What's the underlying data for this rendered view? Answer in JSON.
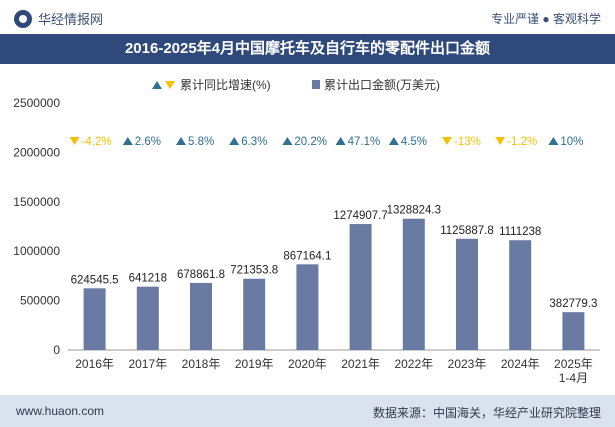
{
  "header": {
    "brand": "华经情报网",
    "tagline": "专业严谨 ● 客观科学"
  },
  "title": "2016-2025年4月中国摩托车及自行车的零配件出口金额",
  "legend": {
    "rate_label": "累计同比增速(%)",
    "value_label": "累计出口金额(万美元)"
  },
  "footer": {
    "url": "www.huaon.com",
    "source": "数据来源：中国海关，华经产业研究院整理"
  },
  "colors": {
    "bar": "#6a7ba3",
    "up": "#2f6f8f",
    "down": "#f2c200",
    "title_bg": "#2f4a7a",
    "footer_bg": "#d9e2ee"
  },
  "chart_data": {
    "type": "bar",
    "categories": [
      "2016年",
      "2017年",
      "2018年",
      "2019年",
      "2020年",
      "2021年",
      "2022年",
      "2023年",
      "2024年",
      "2025年\n1-4月"
    ],
    "series": [
      {
        "name": "累计出口金额(万美元)",
        "values": [
          624545.5,
          641218,
          678861.8,
          721353.8,
          867164.1,
          1274907.7,
          1328824.3,
          1125887.8,
          1111238,
          382779.3
        ]
      },
      {
        "name": "累计同比增速(%)",
        "values": [
          -4.2,
          2.6,
          5.8,
          6.3,
          20.2,
          47.1,
          4.5,
          -13,
          -1.2,
          10
        ]
      }
    ],
    "value_labels": [
      "624545.5",
      "641218",
      "678861.8",
      "721353.8",
      "867164.1",
      "1274907.7",
      "1328824.3",
      "1125887.8",
      "1111238",
      "382779.3"
    ],
    "rate_labels": [
      "-4.2%",
      "2.6%",
      "5.8%",
      "6.3%",
      "20.2%",
      "47.1%",
      "4.5%",
      "-13%",
      "-1.2%",
      "10%"
    ],
    "yticks": [
      "0",
      "500000",
      "1000000",
      "1500000",
      "2000000",
      "2500000"
    ],
    "ylim": [
      0,
      2500000
    ],
    "grid": false,
    "legend_position": "top-center"
  }
}
